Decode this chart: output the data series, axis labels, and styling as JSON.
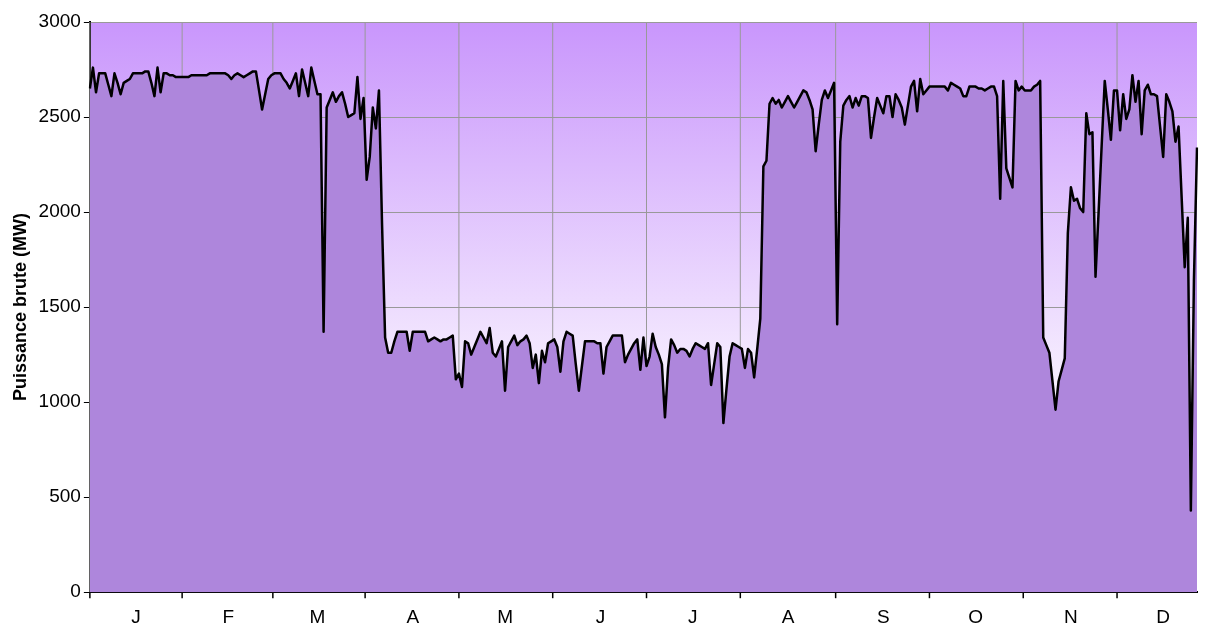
{
  "chart_data": {
    "type": "area",
    "ylabel": "Puissance brute (MW)",
    "color": "#ae86dc",
    "grid": true,
    "ylim": [
      0,
      3000
    ],
    "yticks": [
      0,
      500,
      1000,
      1500,
      2000,
      2500,
      3000
    ],
    "categories": [
      null,
      null,
      null,
      null,
      null,
      null,
      null,
      null,
      null,
      null,
      null,
      null,
      null,
      null,
      null,
      "J",
      null,
      null,
      null,
      null,
      null,
      null,
      null,
      null,
      null,
      null,
      null,
      null,
      null,
      null,
      null,
      null,
      null,
      null,
      null,
      null,
      null,
      null,
      null,
      null,
      null,
      null,
      null,
      null,
      null,
      "F",
      null,
      null,
      null,
      null,
      null,
      null,
      null,
      null,
      null,
      null,
      null,
      null,
      null,
      null,
      null,
      null,
      null,
      null,
      null,
      null,
      null,
      null,
      null,
      null,
      null,
      null,
      null,
      null,
      "M",
      null,
      null,
      null,
      null,
      null,
      null,
      null,
      null,
      null,
      null,
      null,
      null,
      null,
      null,
      null,
      null,
      null,
      null,
      null,
      null,
      null,
      null,
      null,
      null,
      null,
      null,
      null,
      null,
      null,
      null,
      "A",
      null,
      null,
      null,
      null,
      null,
      null,
      null,
      null,
      null,
      null,
      null,
      null,
      null,
      null,
      null,
      null,
      null,
      null,
      null,
      null,
      null,
      null,
      null,
      null,
      null,
      null,
      null,
      null,
      null,
      "M",
      null,
      null,
      null,
      null,
      null,
      null,
      null,
      null,
      null,
      null,
      null,
      null,
      null,
      null,
      null,
      null,
      null,
      null,
      null,
      null,
      null,
      null,
      null,
      null,
      null,
      null,
      null,
      null,
      null,
      null,
      "J",
      null,
      null,
      null,
      null,
      null,
      null,
      null,
      null,
      null,
      null,
      null,
      null,
      null,
      null,
      null,
      null,
      null,
      null,
      null,
      null,
      null,
      null,
      null,
      null,
      null,
      null,
      null,
      null,
      null,
      "J",
      null,
      null,
      null,
      null,
      null,
      null,
      null,
      null,
      null,
      null,
      null,
      null,
      null,
      null,
      null,
      null,
      null,
      null,
      null,
      null,
      null,
      null,
      null,
      null,
      null,
      null,
      null,
      null,
      null,
      null,
      "A",
      null,
      null,
      null,
      null,
      null,
      null,
      null,
      null,
      null,
      null,
      null,
      null,
      null,
      null,
      null,
      null,
      null,
      null,
      null,
      null,
      null,
      null,
      null,
      null,
      null,
      null,
      null,
      null,
      null,
      null,
      "S",
      null,
      null,
      null,
      null,
      null,
      null,
      null,
      null,
      null,
      null,
      null,
      null,
      null,
      null,
      null,
      null,
      null,
      null,
      null,
      null,
      null,
      null,
      null,
      null,
      null,
      null,
      null,
      null,
      null,
      "O",
      null,
      null,
      null,
      null,
      null,
      null,
      null,
      null,
      null,
      null,
      null,
      null,
      null,
      null,
      null,
      null,
      null,
      null,
      null,
      null,
      null,
      null,
      null,
      null,
      null,
      null,
      null,
      null,
      null,
      null,
      "N",
      null,
      null,
      null,
      null,
      null,
      null,
      null,
      null,
      null,
      null,
      null,
      null,
      null,
      null,
      null,
      null,
      null,
      null,
      null,
      null,
      null,
      null,
      null,
      null,
      null,
      null,
      null,
      null,
      null,
      "D",
      null,
      null,
      null,
      null,
      null,
      null,
      null,
      null,
      null,
      null,
      null
    ],
    "values": [
      2650,
      2760,
      2630,
      2730,
      2730,
      2730,
      2670,
      2610,
      2730,
      2680,
      2620,
      2680,
      2690,
      2700,
      2730,
      2730,
      2730,
      2730,
      2740,
      2740,
      2680,
      2610,
      2760,
      2630,
      2730,
      2730,
      2720,
      2720,
      2710,
      2710,
      2710,
      2710,
      2710,
      2720,
      2720,
      2720,
      2720,
      2720,
      2720,
      2730,
      2730,
      2730,
      2730,
      2730,
      2730,
      2720,
      2700,
      2720,
      2730,
      2720,
      2710,
      2720,
      2730,
      2740,
      2740,
      2640,
      2540,
      2620,
      2700,
      2720,
      2730,
      2730,
      2730,
      2700,
      2680,
      2650,
      2690,
      2730,
      2610,
      2750,
      2680,
      2610,
      2760,
      2690,
      2620,
      2620,
      1370,
      2550,
      2590,
      2630,
      2580,
      2610,
      2630,
      2570,
      2500,
      2510,
      2520,
      2710,
      2490,
      2600,
      2170,
      2290,
      2550,
      2440,
      2640,
      1940,
      1340,
      1260,
      1260,
      1320,
      1370,
      1370,
      1370,
      1370,
      1270,
      1370,
      1370,
      1370,
      1370,
      1370,
      1320,
      1330,
      1340,
      1330,
      1320,
      1330,
      1330,
      1340,
      1350,
      1120,
      1150,
      1080,
      1320,
      1310,
      1250,
      1290,
      1330,
      1370,
      1340,
      1310,
      1390,
      1260,
      1240,
      1280,
      1320,
      1060,
      1290,
      1320,
      1350,
      1300,
      1320,
      1330,
      1350,
      1310,
      1180,
      1250,
      1100,
      1270,
      1210,
      1310,
      1320,
      1330,
      1290,
      1160,
      1320,
      1370,
      1360,
      1350,
      1200,
      1060,
      1190,
      1320,
      1320,
      1320,
      1320,
      1310,
      1310,
      1150,
      1290,
      1320,
      1350,
      1350,
      1350,
      1350,
      1210,
      1250,
      1280,
      1310,
      1330,
      1170,
      1340,
      1190,
      1240,
      1360,
      1290,
      1250,
      1200,
      920,
      1180,
      1330,
      1300,
      1260,
      1280,
      1280,
      1270,
      1240,
      1280,
      1310,
      1300,
      1290,
      1280,
      1310,
      1090,
      1200,
      1310,
      1290,
      890,
      1070,
      1240,
      1310,
      1300,
      1290,
      1280,
      1180,
      1280,
      1260,
      1130,
      1280,
      1440,
      2240,
      2270,
      2570,
      2600,
      2570,
      2590,
      2550,
      2580,
      2610,
      2580,
      2550,
      2580,
      2610,
      2640,
      2630,
      2590,
      2540,
      2320,
      2460,
      2590,
      2640,
      2600,
      2640,
      2680,
      1410,
      2370,
      2560,
      2590,
      2610,
      2550,
      2600,
      2560,
      2610,
      2610,
      2600,
      2390,
      2500,
      2600,
      2560,
      2520,
      2610,
      2610,
      2500,
      2620,
      2590,
      2550,
      2460,
      2560,
      2660,
      2690,
      2530,
      2700,
      2620,
      2640,
      2660,
      2660,
      2660,
      2660,
      2660,
      2660,
      2640,
      2680,
      2670,
      2660,
      2650,
      2610,
      2610,
      2660,
      2660,
      2660,
      2650,
      2650,
      2640,
      2650,
      2660,
      2660,
      2610,
      2070,
      2690,
      2230,
      2180,
      2130,
      2690,
      2640,
      2660,
      2640,
      2640,
      2640,
      2660,
      2670,
      2690,
      1340,
      1300,
      1260,
      1110,
      960,
      1110,
      1170,
      1230,
      1890,
      2130,
      2060,
      2070,
      2020,
      2000,
      2520,
      2410,
      2420,
      1660,
      2000,
      2350,
      2690,
      2540,
      2380,
      2640,
      2640,
      2430,
      2620,
      2490,
      2540,
      2720,
      2580,
      2690,
      2410,
      2640,
      2670,
      2620,
      2620,
      2610,
      2450,
      2290,
      2620,
      2580,
      2530,
      2370,
      2450,
      2080,
      1710,
      1970,
      430,
      1640,
      2340
    ]
  }
}
